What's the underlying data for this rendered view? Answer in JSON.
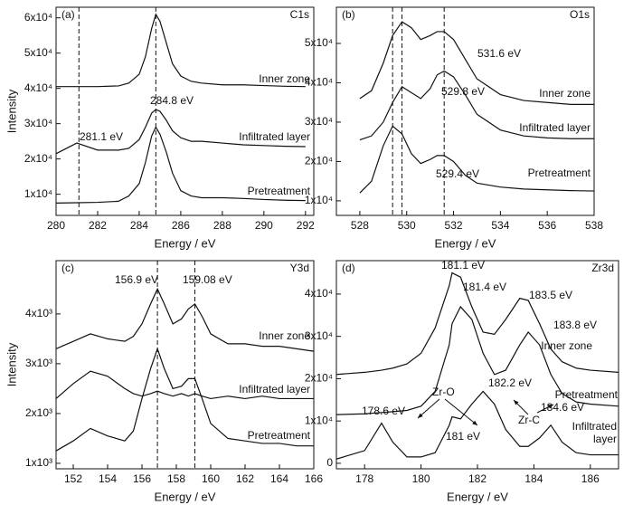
{
  "chart_data": [
    {
      "type": "line",
      "panel": "(a)",
      "element": "C1s",
      "xlabel": "Energy / eV",
      "ylabel": "Intensity",
      "x": [
        280,
        281,
        282,
        283,
        283.5,
        284,
        284.3,
        284.6,
        284.8,
        285,
        285.3,
        285.6,
        286,
        286.5,
        287,
        288,
        289,
        290,
        291,
        292
      ],
      "xlim": [
        280,
        292.4
      ],
      "xticks": [
        280,
        282,
        284,
        286,
        288,
        290,
        292
      ],
      "ylim": [
        4000,
        63000
      ],
      "yticks": [
        {
          "value": 10000,
          "label": "1x10⁴"
        },
        {
          "value": 20000,
          "label": "2x10⁴"
        },
        {
          "value": 30000,
          "label": "3x10⁴"
        },
        {
          "value": 40000,
          "label": "4x10⁴"
        },
        {
          "value": 50000,
          "label": "5x10⁴"
        },
        {
          "value": 60000,
          "label": "6x10⁴"
        }
      ],
      "vlines": [
        284.8,
        281.1
      ],
      "annotations": [
        "284.8 eV",
        "281.1 eV"
      ],
      "series": [
        {
          "name": "Inner zone",
          "color": "#111111",
          "values": [
            40500,
            40500,
            40500,
            40700,
            41500,
            44000,
            49000,
            57000,
            61000,
            59000,
            53000,
            47000,
            43500,
            42000,
            41500,
            41000,
            41000,
            40800,
            40600,
            40500
          ]
        },
        {
          "name": "Infiltrated layer",
          "color": "#111111",
          "values": [
            21500,
            24500,
            22500,
            22500,
            23000,
            25500,
            29000,
            33000,
            34000,
            33500,
            31000,
            28000,
            26000,
            25000,
            25000,
            24500,
            24000,
            23800,
            23600,
            23500
          ]
        },
        {
          "name": "Pretreatment",
          "color": "#111111",
          "values": [
            7500,
            7600,
            7700,
            8000,
            9500,
            13000,
            19000,
            26500,
            29000,
            27000,
            22000,
            16000,
            11000,
            9500,
            9000,
            9000,
            8800,
            8500,
            8300,
            8200
          ]
        }
      ]
    },
    {
      "type": "line",
      "panel": "(b)",
      "element": "O1s",
      "xlabel": "Energy / eV",
      "x": [
        528,
        528.5,
        529,
        529.4,
        529.8,
        530.2,
        530.6,
        531,
        531.3,
        531.6,
        532,
        532.5,
        533,
        534,
        535,
        536,
        537,
        538
      ],
      "xlim": [
        527,
        538
      ],
      "xticks": [
        528,
        530,
        532,
        534,
        536,
        538
      ],
      "ylim": [
        6300,
        59200
      ],
      "yticks": [
        {
          "value": 10000,
          "label": "1x10⁴"
        },
        {
          "value": 20000,
          "label": "2x10⁴"
        },
        {
          "value": 30000,
          "label": "3x10⁴"
        },
        {
          "value": 40000,
          "label": "4x10⁴"
        },
        {
          "value": 50000,
          "label": "5x10⁴"
        }
      ],
      "vlines": [
        529.4,
        529.8,
        531.6
      ],
      "annotations": [
        "531.6 eV",
        "529.8 eV",
        "529.4 eV"
      ],
      "series": [
        {
          "name": "Inner zone",
          "color": "#111111",
          "values": [
            36000,
            38000,
            45000,
            52000,
            55500,
            54000,
            51000,
            52000,
            53000,
            53000,
            51000,
            46000,
            41000,
            37000,
            35500,
            35000,
            34500,
            34500
          ]
        },
        {
          "name": "Infiltrated layer",
          "color": "#111111",
          "values": [
            25500,
            26500,
            30000,
            35000,
            39000,
            37500,
            36000,
            38500,
            42000,
            43000,
            41500,
            37000,
            32000,
            28000,
            26500,
            26000,
            25800,
            25800
          ]
        },
        {
          "name": "Pretreatment",
          "color": "#111111",
          "values": [
            12000,
            15000,
            24000,
            29000,
            27000,
            22000,
            19500,
            20500,
            21500,
            21500,
            20000,
            16500,
            14500,
            13500,
            13000,
            12800,
            12600,
            12500
          ]
        }
      ]
    },
    {
      "type": "line",
      "panel": "(c)",
      "element": "Y3d",
      "xlabel": "Energy / eV",
      "ylabel": "Intensity",
      "x": [
        151,
        152,
        153,
        154,
        155,
        155.5,
        156,
        156.5,
        156.9,
        157.3,
        157.8,
        158.3,
        158.7,
        159.08,
        159.5,
        160,
        161,
        162,
        163,
        164,
        165,
        166
      ],
      "xlim": [
        151,
        166
      ],
      "xticks": [
        152,
        154,
        156,
        158,
        160,
        162,
        164,
        166
      ],
      "ylim": [
        890,
        5070
      ],
      "yticks": [
        {
          "value": 1000,
          "label": "1x10³"
        },
        {
          "value": 2000,
          "label": "2x10³"
        },
        {
          "value": 3000,
          "label": "3x10³"
        },
        {
          "value": 4000,
          "label": "4x10³"
        }
      ],
      "vlines": [
        156.9,
        159.08
      ],
      "annotations": [
        "156.9 eV",
        "159.08 eV"
      ],
      "series": [
        {
          "name": "Inner zone",
          "color": "#111111",
          "values": [
            3300,
            3450,
            3600,
            3500,
            3450,
            3550,
            3800,
            4200,
            4500,
            4200,
            3800,
            3900,
            4100,
            4200,
            3950,
            3600,
            3400,
            3400,
            3350,
            3350,
            3300,
            3250
          ]
        },
        {
          "name": "Infiltrated layer",
          "color": "#111111",
          "values": [
            2300,
            2600,
            2850,
            2750,
            2500,
            2400,
            2350,
            2400,
            2450,
            2400,
            2350,
            2400,
            2350,
            2400,
            2350,
            2300,
            2350,
            2300,
            2350,
            2300,
            2300,
            2300
          ]
        },
        {
          "name": "Pretreatment",
          "color": "#111111",
          "values": [
            1250,
            1450,
            1700,
            1550,
            1450,
            1650,
            2300,
            2900,
            3300,
            2900,
            2500,
            2550,
            2700,
            2700,
            2300,
            1800,
            1500,
            1450,
            1400,
            1400,
            1350,
            1350
          ]
        }
      ]
    },
    {
      "type": "line",
      "panel": "(d)",
      "element": "Zr3d",
      "xlabel": "Energy / eV",
      "x": [
        177,
        178,
        178.6,
        179,
        179.5,
        180,
        180.5,
        181,
        181.1,
        181.4,
        181.8,
        182.2,
        182.6,
        183,
        183.5,
        183.8,
        184.2,
        184.6,
        185,
        185.5,
        186,
        187
      ],
      "xlim": [
        177,
        187
      ],
      "xticks": [
        178,
        180,
        182,
        184,
        186
      ],
      "ylim": [
        -1300,
        47900
      ],
      "yticks": [
        0,
        {
          "value": 10000,
          "label": "1x10⁴"
        },
        {
          "value": 20000,
          "label": "2x10⁴"
        },
        {
          "value": 30000,
          "label": "3x10⁴"
        },
        {
          "value": 40000,
          "label": "4x10⁴"
        }
      ],
      "annotations": [
        "181.1 eV",
        "181.4 eV",
        "183.5 eV",
        "183.8 eV",
        "182.2 eV",
        "178.6 eV",
        "184.6 eV",
        "181 eV",
        "Zr-O",
        "Zr-C"
      ],
      "series": [
        {
          "name": "Inner zone",
          "color": "#111111",
          "values": [
            21000,
            21500,
            22000,
            22500,
            23500,
            26000,
            32000,
            42000,
            45000,
            44000,
            37000,
            31000,
            30500,
            34000,
            39000,
            38500,
            33000,
            27000,
            24000,
            22500,
            22000,
            21500
          ]
        },
        {
          "name": "Pretreatment",
          "color": "#111111",
          "values": [
            11500,
            11700,
            12000,
            12200,
            12500,
            13500,
            17000,
            28000,
            33000,
            37000,
            34000,
            26000,
            21000,
            22000,
            28000,
            31000,
            28000,
            21000,
            16500,
            14500,
            14000,
            13500
          ]
        },
        {
          "name": "Infiltrated layer",
          "color": "#111111",
          "values": [
            1000,
            3000,
            9500,
            5000,
            1500,
            1500,
            2500,
            9000,
            11000,
            10500,
            14000,
            17000,
            14000,
            8000,
            4000,
            4000,
            6000,
            9000,
            5000,
            2500,
            2000,
            2000
          ]
        }
      ]
    }
  ]
}
